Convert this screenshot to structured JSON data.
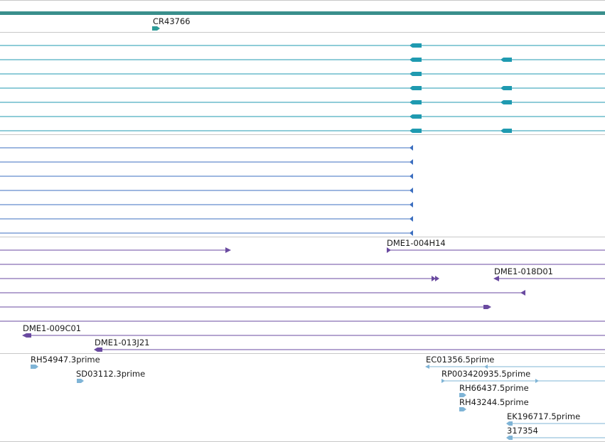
{
  "colors": {
    "background": "#ffffff",
    "separator": "#c8c8c8",
    "gene_band": "#3a8f8c",
    "gene": "#2f9c98",
    "transcript": "#1f9ab0",
    "mrna": "#3c6fc0",
    "bac": "#6a4aa0",
    "est": "#7fb4d6"
  },
  "tracks": {
    "genes": {
      "labels": [
        "CR43766"
      ]
    },
    "bac_clones": {
      "labels": [
        "DME1-004H14",
        "DME1-018D01",
        "DME1-009C01",
        "DME1-013J21"
      ]
    },
    "ests": {
      "labels": [
        "RH54947.3prime",
        "SD03112.3prime",
        "EC01356.5prime",
        "RP003420935.5prime",
        "RH66437.5prime",
        "RH43244.5prime",
        "EK196717.5prime",
        "317354"
      ]
    }
  }
}
